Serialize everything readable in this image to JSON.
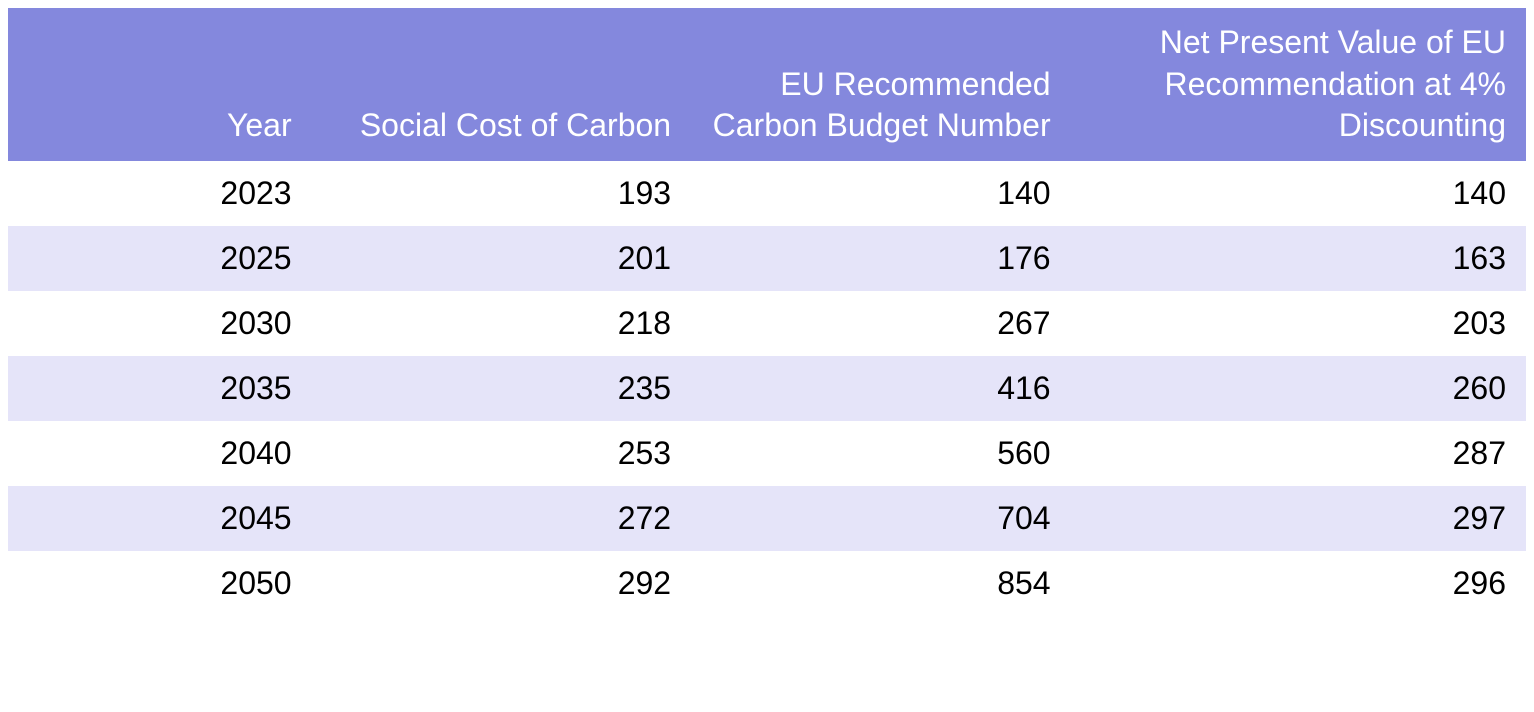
{
  "table": {
    "type": "table",
    "header_background_color": "#8488dd",
    "header_text_color": "#ffffff",
    "row_background_color": "#ffffff",
    "row_alt_background_color": "#e5e4f9",
    "cell_text_color": "#000000",
    "header_fontsize": 32,
    "cell_fontsize": 32,
    "text_align": "right",
    "columns": [
      "Year",
      "Social Cost of Carbon",
      "EU Recommended Carbon Budget Number",
      "Net Present Value of EU Recommendation at 4% Discounting"
    ],
    "rows": [
      [
        "2023",
        "193",
        "140",
        "140"
      ],
      [
        "2025",
        "201",
        "176",
        "163"
      ],
      [
        "2030",
        "218",
        "267",
        "203"
      ],
      [
        "2035",
        "235",
        "416",
        "260"
      ],
      [
        "2040",
        "253",
        "560",
        "287"
      ],
      [
        "2045",
        "272",
        "704",
        "297"
      ],
      [
        "2050",
        "292",
        "854",
        "296"
      ]
    ],
    "column_widths_pct": [
      20,
      25,
      25,
      30
    ]
  }
}
